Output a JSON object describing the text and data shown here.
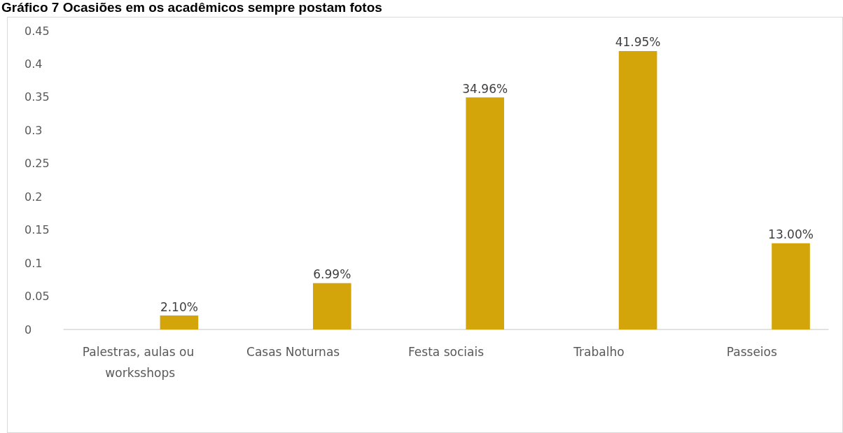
{
  "chart_data": {
    "type": "bar",
    "title": "Gráfico 7 Ocasiões em os acadêmicos sempre postam fotos",
    "categories": [
      "Palestras, aulas ou worksshops",
      "Casas Noturnas",
      "Festa sociais",
      "Trabalho",
      "Passeios"
    ],
    "series": [
      {
        "values": [
          null,
          null,
          null,
          null,
          null
        ]
      },
      {
        "color": "#d4a50a",
        "values": [
          0.021,
          0.0699,
          0.3496,
          0.4195,
          0.13
        ],
        "value_labels": [
          "2.10%",
          "6.99%",
          "34.96%",
          "41.95%",
          "13.00%"
        ]
      }
    ],
    "ylim": [
      0,
      0.45
    ],
    "yticks": [
      0,
      0.05,
      0.1,
      0.15,
      0.2,
      0.25,
      0.3,
      0.35,
      0.4,
      0.45
    ],
    "grid": false
  }
}
